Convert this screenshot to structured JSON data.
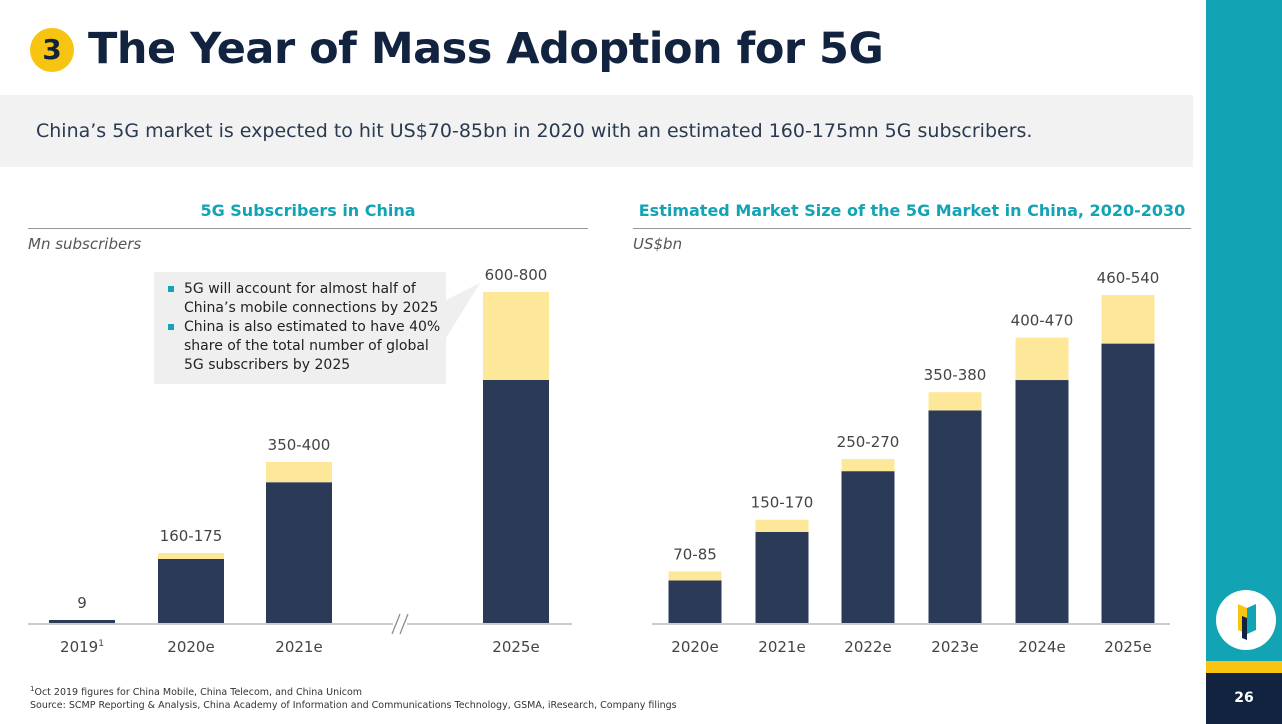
{
  "header": {
    "badge": "3",
    "title": "The Year of Mass Adoption for 5G",
    "subtitle": "China’s 5G market is expected to hit US$70-85bn in 2020 with an estimated 160-175mn 5G subscribers."
  },
  "callout": {
    "bullets": [
      "5G will account for almost half of China’s mobile connections by 2025",
      "China is also estimated to have 40% share of the total number of global 5G subscribers by 2025"
    ]
  },
  "footnote": {
    "note_mark": "1",
    "note": "Oct 2019 figures for China Mobile, China Telecom, and China Unicom",
    "source": "Source: SCMP Reporting & Analysis, China Academy of Information and Communications Technology, GSMA, iResearch, Company filings"
  },
  "page_number": "26",
  "colors": {
    "accent": "#12a3b4",
    "yellow": "#f7c511",
    "navy": "#12233f",
    "bar_low": "#2b3a57",
    "bar_range": "#fde89a"
  },
  "chart_data": [
    {
      "type": "bar",
      "stacked": true,
      "title": "5G Subscribers in China",
      "ylabel": "Mn subscribers",
      "categories": [
        "2019",
        "2020e",
        "2021e",
        "2025e"
      ],
      "category_superscripts": [
        "1",
        "",
        "",
        ""
      ],
      "low": [
        9,
        160,
        350,
        600
      ],
      "high": [
        9,
        175,
        400,
        800
      ],
      "labels": [
        "9",
        "160-175",
        "350-400",
        "600-800"
      ],
      "axis_break_between": [
        "2021e",
        "2025e"
      ],
      "grid": false
    },
    {
      "type": "bar",
      "stacked": true,
      "title": "Estimated Market Size of the 5G Market in China, 2020-2030",
      "ylabel": "US$bn",
      "categories": [
        "2020e",
        "2021e",
        "2022e",
        "2023e",
        "2024e",
        "2025e"
      ],
      "low": [
        70,
        150,
        250,
        350,
        400,
        460
      ],
      "high": [
        85,
        170,
        270,
        380,
        470,
        540
      ],
      "labels": [
        "70-85",
        "150-170",
        "250-270",
        "350-380",
        "400-470",
        "460-540"
      ],
      "grid": false
    }
  ]
}
